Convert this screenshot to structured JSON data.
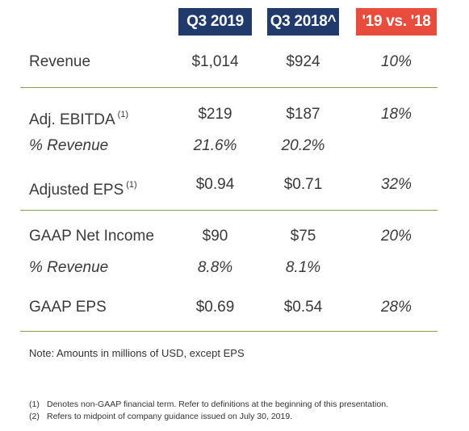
{
  "headers": {
    "col1": "Q3 2019",
    "col2": "Q3 2018^",
    "col3": "'19 vs. '18"
  },
  "rows": [
    {
      "label": "Revenue",
      "footnote": "",
      "q3_2019": "$1,014",
      "q3_2018": "$924",
      "change": "10%"
    },
    {
      "label": "Adj. EBITDA",
      "footnote": "(1)",
      "q3_2019": "$219",
      "q3_2018": "$187",
      "change": "18%"
    },
    {
      "label": "% Revenue",
      "footnote": "",
      "q3_2019": "21.6%",
      "q3_2018": "20.2%",
      "change": ""
    },
    {
      "label": "Adjusted EPS",
      "footnote": "(1)",
      "q3_2019": "$0.94",
      "q3_2018": "$0.71",
      "change": "32%"
    },
    {
      "label": "GAAP Net Income",
      "footnote": "",
      "q3_2019": "$90",
      "q3_2018": "$75",
      "change": "20%"
    },
    {
      "label": "% Revenue",
      "footnote": "",
      "q3_2019": "8.8%",
      "q3_2018": "8.1%",
      "change": ""
    },
    {
      "label": "GAAP EPS",
      "footnote": "",
      "q3_2019": "$0.69",
      "q3_2018": "$0.54",
      "change": "28%"
    }
  ],
  "note": "Note: Amounts in millions of USD, except EPS",
  "footnotes": [
    {
      "num": "(1)",
      "text": "Denotes non-GAAP financial term.  Refer to definitions at the beginning of this presentation."
    },
    {
      "num": "(2)",
      "text": "Refers to midpoint of company guidance issued on July 30, 2019."
    }
  ],
  "colors": {
    "navy": "#1f3a6b",
    "red": "#e84c3d",
    "rule": "#8aa05a"
  }
}
